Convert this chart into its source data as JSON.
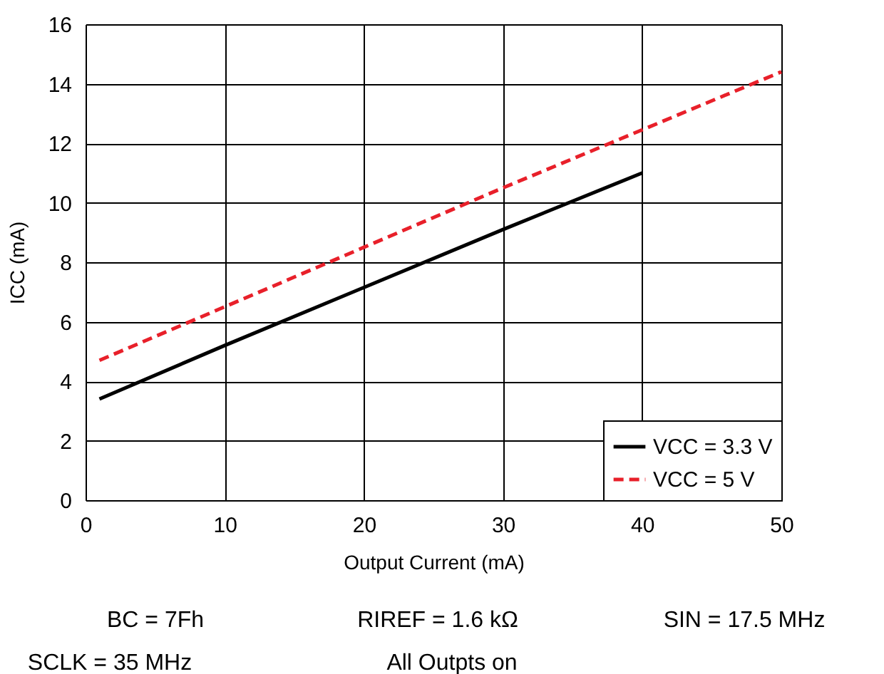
{
  "chart_data": {
    "type": "line",
    "xlabel": "Output Current (mA)",
    "ylabel": "ICC (mA)",
    "xlim": [
      0,
      50
    ],
    "xticks": [
      0,
      10,
      20,
      30,
      40,
      50
    ],
    "ylim": [
      0,
      16
    ],
    "yticks": [
      0,
      2,
      4,
      6,
      8,
      10,
      12,
      14,
      16
    ],
    "grid": true,
    "legend": "bottom right",
    "marker": "none",
    "series": [
      {
        "name": "VCC = 3.3 V",
        "color": "#000000",
        "line_style": "solid",
        "x": [
          1,
          10,
          20,
          30,
          40
        ],
        "values": [
          3.4,
          5.2,
          7.15,
          9.1,
          11.0
        ]
      },
      {
        "name": "VCC = 5 V",
        "color": "#e8202a",
        "line_style": "dashed",
        "x": [
          1,
          10,
          20,
          30,
          40,
          50
        ],
        "values": [
          4.7,
          6.5,
          8.5,
          10.5,
          12.45,
          14.4
        ]
      }
    ],
    "annotations": [
      "BC = 7Fh",
      "RIREF = 1.6 kΩ",
      "SIN = 17.5 MHz",
      "SCLK = 35 MHz",
      "All Outpts on"
    ]
  }
}
